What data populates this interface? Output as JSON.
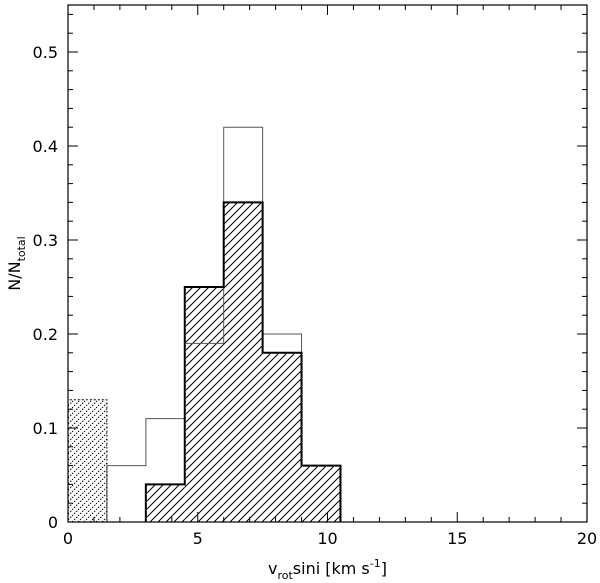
{
  "chart_data": {
    "type": "bar",
    "xlabel": {
      "main": "v",
      "sub": "rot",
      "rest": "sini  [km s",
      "sup": "-1",
      "end": "]"
    },
    "ylabel": {
      "main": "N/N",
      "sub": "total"
    },
    "xlim": [
      0,
      20
    ],
    "ylim": [
      0,
      0.55
    ],
    "xticks": [
      0,
      5,
      10,
      15,
      20
    ],
    "xtick_labels": [
      "0",
      "5",
      "10",
      "15",
      "20"
    ],
    "yticks": [
      0,
      0.1,
      0.2,
      0.3,
      0.4,
      0.5
    ],
    "ytick_labels": [
      "0",
      "0.1",
      "0.2",
      "0.3",
      "0.4",
      "0.5"
    ],
    "grid": false,
    "legend": "none",
    "series": [
      {
        "style": "thin-outline",
        "bins": [
          {
            "x0": 0,
            "x1": 1.5,
            "value": 0.0
          },
          {
            "x0": 1.5,
            "x1": 3.0,
            "value": 0.06
          },
          {
            "x0": 3.0,
            "x1": 4.5,
            "value": 0.11
          },
          {
            "x0": 4.5,
            "x1": 6.0,
            "value": 0.19
          },
          {
            "x0": 6.0,
            "x1": 7.5,
            "value": 0.42
          },
          {
            "x0": 7.5,
            "x1": 9.0,
            "value": 0.2
          },
          {
            "x0": 9.0,
            "x1": 10.5,
            "value": 0.06
          },
          {
            "x0": 10.5,
            "x1": 20,
            "value": 0.0
          }
        ]
      },
      {
        "style": "hatched-thick",
        "bins": [
          {
            "x0": 3.0,
            "x1": 4.5,
            "value": 0.04
          },
          {
            "x0": 4.5,
            "x1": 6.0,
            "value": 0.25
          },
          {
            "x0": 6.0,
            "x1": 7.5,
            "value": 0.34
          },
          {
            "x0": 7.5,
            "x1": 9.0,
            "value": 0.18
          },
          {
            "x0": 9.0,
            "x1": 10.5,
            "value": 0.06
          }
        ]
      },
      {
        "style": "dotted-hatched",
        "bins": [
          {
            "x0": 0,
            "x1": 1.5,
            "value": 0.13
          }
        ]
      }
    ]
  }
}
